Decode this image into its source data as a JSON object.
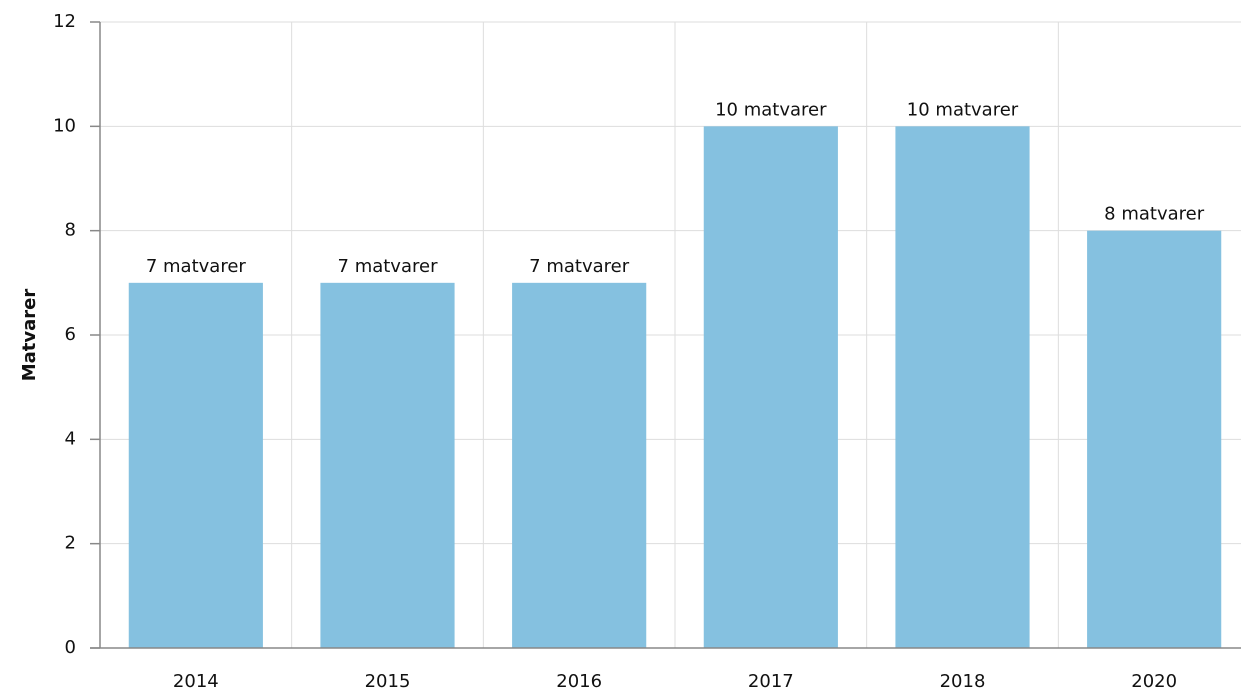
{
  "chart_data": {
    "type": "bar",
    "y_label": "Matvarer",
    "categories": [
      "2014",
      "2015",
      "2016",
      "2017",
      "2018",
      "2020"
    ],
    "values": [
      7,
      7,
      7,
      10,
      10,
      8
    ],
    "value_labels": [
      "7 matvarer",
      "7 matvarer",
      "7 matvarer",
      "10 matvarer",
      "10 matvarer",
      "8 matvarer"
    ],
    "color": "#85c1e0",
    "ylim": [
      0,
      12
    ],
    "yticks": [
      0,
      2,
      4,
      6,
      8,
      10,
      12
    ],
    "grid": true
  }
}
